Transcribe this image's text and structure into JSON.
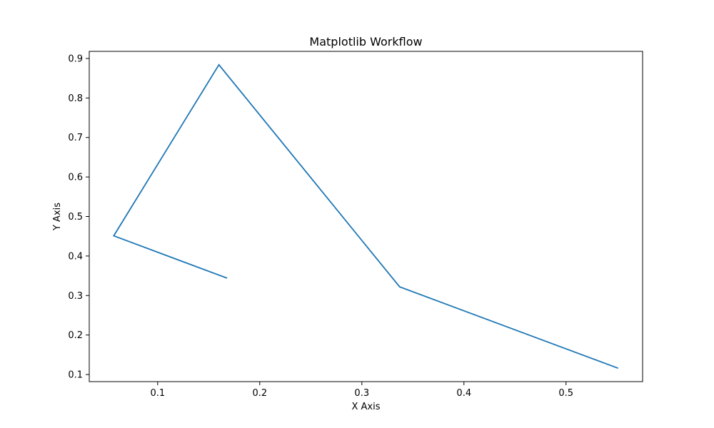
{
  "chart_data": {
    "type": "line",
    "title": "Matplotlib Workflow",
    "xlabel": "X Axis",
    "ylabel": "Y Axis",
    "grid": false,
    "legend": "none",
    "xlim": [
      0.033,
      0.575
    ],
    "ylim": [
      0.082,
      0.918
    ],
    "xticks": [
      0.1,
      0.2,
      0.3,
      0.4,
      0.5
    ],
    "xtick_labels": [
      "0.1",
      "0.2",
      "0.3",
      "0.4",
      "0.5"
    ],
    "yticks": [
      0.1,
      0.2,
      0.3,
      0.4,
      0.5,
      0.6,
      0.7,
      0.8,
      0.9
    ],
    "ytick_labels": [
      "0.1",
      "0.2",
      "0.3",
      "0.4",
      "0.5",
      "0.6",
      "0.7",
      "0.8",
      "0.9"
    ],
    "series": [
      {
        "color": "#1f77b4",
        "x": [
          0.168,
          0.057,
          0.16,
          0.337,
          0.551
        ],
        "y": [
          0.344,
          0.451,
          0.884,
          0.322,
          0.116
        ]
      }
    ]
  }
}
